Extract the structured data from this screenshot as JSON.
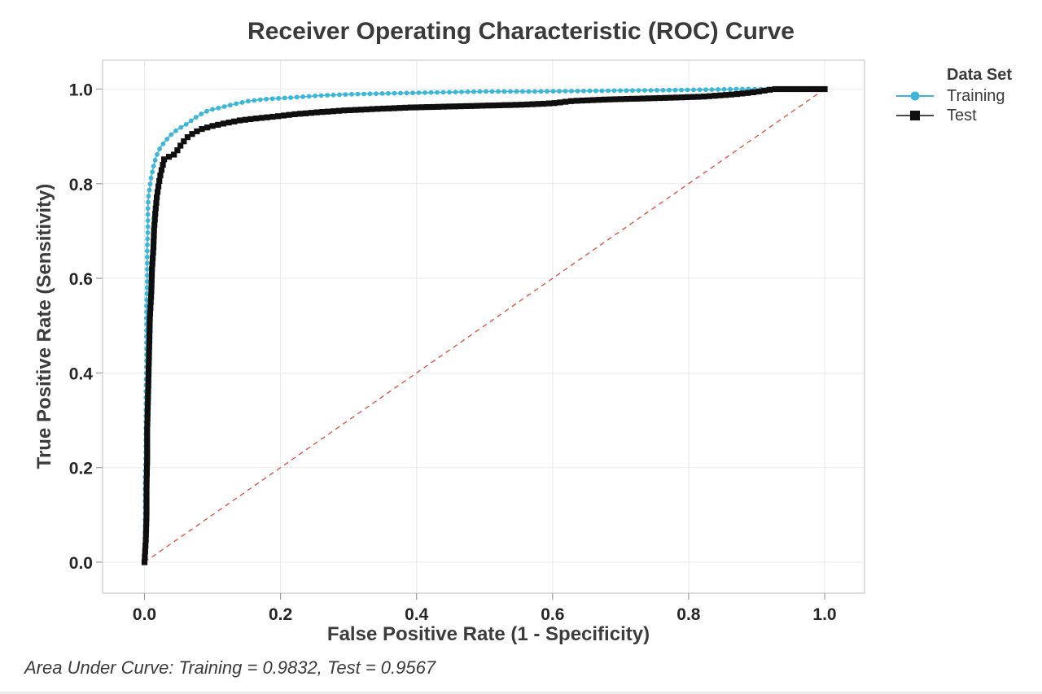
{
  "chart_data": {
    "type": "line",
    "title": "Receiver Operating Characteristic (ROC) Curve",
    "xlabel": "False Positive Rate (1 - Specificity)",
    "ylabel": "True Positive Rate (Sensitivity)",
    "xlim": [
      0,
      1
    ],
    "ylim": [
      0,
      1
    ],
    "xticks": [
      0,
      0.2,
      0.4,
      0.6,
      0.8,
      1
    ],
    "xtick_labels": [
      "0.0",
      "0.2",
      "0.4",
      "0.6",
      "0.8",
      "1.0"
    ],
    "yticks": [
      0,
      0.2,
      0.4,
      0.6,
      0.8,
      1
    ],
    "ytick_labels": [
      "0.0",
      "0.2",
      "0.4",
      "0.6",
      "0.8",
      "1.0"
    ],
    "grid": true,
    "annotation": "Area Under Curve: Training = 0.9832, Test = 0.9567",
    "legend": {
      "title": "Data Set",
      "position": "right-top"
    },
    "reference_line": {
      "name": "chance-diagonal",
      "from": [
        0,
        0
      ],
      "to": [
        1,
        1
      ],
      "color": "#e0544c",
      "dashed": true
    },
    "series": [
      {
        "name": "Training",
        "color": "#3BB7D9",
        "marker": "circle",
        "auc": 0.9832,
        "points": [
          [
            0,
            0
          ],
          [
            0.001,
            0.06
          ],
          [
            0.001,
            0.12
          ],
          [
            0.001,
            0.18
          ],
          [
            0.002,
            0.24
          ],
          [
            0.002,
            0.3
          ],
          [
            0.002,
            0.36
          ],
          [
            0.003,
            0.42
          ],
          [
            0.003,
            0.48
          ],
          [
            0.003,
            0.54
          ],
          [
            0.004,
            0.6
          ],
          [
            0.004,
            0.66
          ],
          [
            0.005,
            0.71
          ],
          [
            0.005,
            0.75
          ],
          [
            0.006,
            0.775
          ],
          [
            0.008,
            0.795
          ],
          [
            0.01,
            0.815
          ],
          [
            0.013,
            0.835
          ],
          [
            0.017,
            0.857
          ],
          [
            0.023,
            0.876
          ],
          [
            0.031,
            0.891
          ],
          [
            0.04,
            0.905
          ],
          [
            0.049,
            0.915
          ],
          [
            0.061,
            0.925
          ],
          [
            0.073,
            0.938
          ],
          [
            0.084,
            0.948
          ],
          [
            0.096,
            0.956
          ],
          [
            0.112,
            0.961
          ],
          [
            0.131,
            0.968
          ],
          [
            0.154,
            0.975
          ],
          [
            0.18,
            0.979
          ],
          [
            0.215,
            0.982
          ],
          [
            0.255,
            0.986
          ],
          [
            0.3,
            0.989
          ],
          [
            0.36,
            0.991
          ],
          [
            0.43,
            0.993
          ],
          [
            0.5,
            0.995
          ],
          [
            0.57,
            0.995
          ],
          [
            0.64,
            0.996
          ],
          [
            0.71,
            0.997
          ],
          [
            0.78,
            0.998
          ],
          [
            0.84,
            0.999
          ],
          [
            0.87,
            1
          ],
          [
            1,
            1
          ]
        ]
      },
      {
        "name": "Test",
        "color": "#0F0F0F",
        "marker": "square",
        "auc": 0.9567,
        "points": [
          [
            0,
            0
          ],
          [
            0.002,
            0.05
          ],
          [
            0.003,
            0.1
          ],
          [
            0.003,
            0.16
          ],
          [
            0.004,
            0.22
          ],
          [
            0.004,
            0.28
          ],
          [
            0.005,
            0.34
          ],
          [
            0.006,
            0.4
          ],
          [
            0.007,
            0.46
          ],
          [
            0.008,
            0.52
          ],
          [
            0.01,
            0.57
          ],
          [
            0.011,
            0.62
          ],
          [
            0.013,
            0.66
          ],
          [
            0.014,
            0.7
          ],
          [
            0.016,
            0.74
          ],
          [
            0.018,
            0.77
          ],
          [
            0.021,
            0.8
          ],
          [
            0.024,
            0.823
          ],
          [
            0.027,
            0.84
          ],
          [
            0.029,
            0.852
          ],
          [
            0.036,
            0.857
          ],
          [
            0.044,
            0.862
          ],
          [
            0.049,
            0.872
          ],
          [
            0.055,
            0.885
          ],
          [
            0.063,
            0.898
          ],
          [
            0.073,
            0.908
          ],
          [
            0.085,
            0.916
          ],
          [
            0.1,
            0.922
          ],
          [
            0.119,
            0.928
          ],
          [
            0.141,
            0.934
          ],
          [
            0.165,
            0.938
          ],
          [
            0.192,
            0.942
          ],
          [
            0.222,
            0.947
          ],
          [
            0.255,
            0.951
          ],
          [
            0.295,
            0.955
          ],
          [
            0.34,
            0.958
          ],
          [
            0.39,
            0.961
          ],
          [
            0.445,
            0.963
          ],
          [
            0.5,
            0.965
          ],
          [
            0.555,
            0.967
          ],
          [
            0.6,
            0.97
          ],
          [
            0.63,
            0.975
          ],
          [
            0.68,
            0.978
          ],
          [
            0.73,
            0.98
          ],
          [
            0.78,
            0.982
          ],
          [
            0.82,
            0.984
          ],
          [
            0.85,
            0.987
          ],
          [
            0.875,
            0.99
          ],
          [
            0.9,
            0.994
          ],
          [
            0.925,
            1
          ],
          [
            1,
            1
          ]
        ]
      }
    ]
  }
}
